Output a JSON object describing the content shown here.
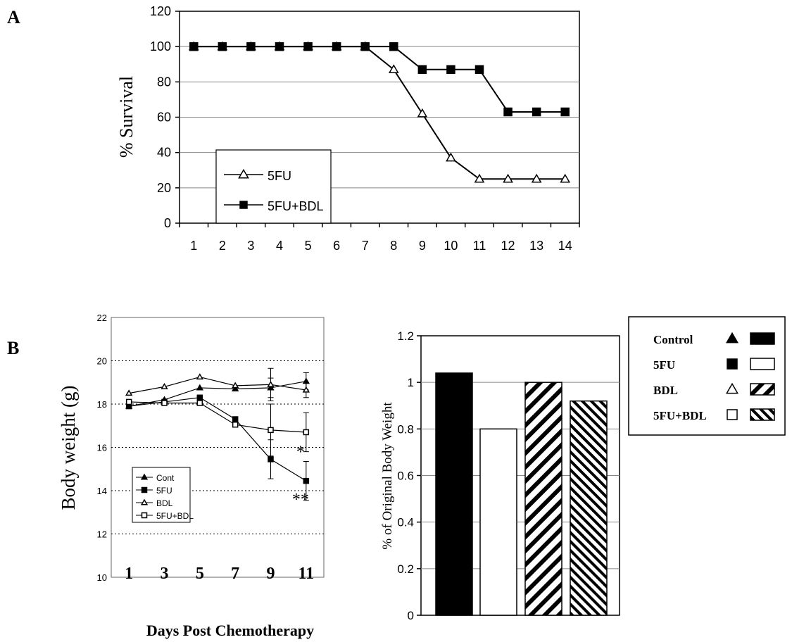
{
  "panel_labels": {
    "a": "A",
    "b": "B"
  },
  "shared_xlabel": "Days Post Chemotherapy",
  "chart_data": [
    {
      "type": "line",
      "panel": "A",
      "ylabel": "% Survival",
      "ylim": [
        0,
        120
      ],
      "yticks": [
        0,
        20,
        40,
        60,
        80,
        100,
        120
      ],
      "x": [
        1,
        2,
        3,
        4,
        5,
        6,
        7,
        8,
        9,
        10,
        11,
        12,
        13,
        14
      ],
      "grid": "horizontal",
      "legend_placement": "lower-left",
      "series": [
        {
          "name": "5FU",
          "marker": "open-triangle",
          "values": [
            100,
            100,
            100,
            100,
            100,
            100,
            100,
            87,
            62,
            37,
            25,
            25,
            25,
            25
          ]
        },
        {
          "name": "5FU+BDL",
          "marker": "filled-square",
          "values": [
            100,
            100,
            100,
            100,
            100,
            100,
            100,
            100,
            87,
            87,
            87,
            63,
            63,
            63
          ]
        }
      ]
    },
    {
      "type": "line",
      "panel": "B-left",
      "ylabel": "Body weight (g)",
      "ylim": [
        10,
        22
      ],
      "yticks": [
        10,
        12,
        14,
        16,
        18,
        20,
        22
      ],
      "xlim": [
        0,
        12
      ],
      "xticks": [
        1,
        3,
        5,
        7,
        9,
        11
      ],
      "grid": "horizontal-dotted",
      "legend_placement": "lower-left",
      "x": [
        1,
        3,
        5,
        7,
        9,
        11
      ],
      "series": [
        {
          "name": "Cont",
          "marker": "filled-triangle",
          "values": [
            17.9,
            18.2,
            18.75,
            18.7,
            18.75,
            19.05
          ],
          "errors": [
            0,
            0,
            0,
            0,
            0.45,
            0.4
          ]
        },
        {
          "name": "5FU",
          "marker": "filled-square",
          "values": [
            17.9,
            18.1,
            18.3,
            17.3,
            15.45,
            14.45
          ],
          "errors": [
            0,
            0,
            0,
            0,
            0.9,
            0.9
          ]
        },
        {
          "name": "BDL",
          "marker": "open-triangle",
          "values": [
            18.5,
            18.8,
            19.25,
            18.85,
            18.9,
            18.65
          ],
          "errors": [
            0,
            0,
            0,
            0,
            0.75,
            0.35
          ]
        },
        {
          "name": "5FU+BDL",
          "marker": "open-square",
          "values": [
            18.1,
            18.05,
            18.05,
            17.05,
            16.8,
            16.7
          ],
          "errors": [
            0,
            0,
            0,
            0,
            1.2,
            0.9
          ]
        }
      ],
      "annotations": [
        {
          "text": "*",
          "x": 11,
          "y": 16.0
        },
        {
          "text": "**",
          "x": 11,
          "y": 13.8
        }
      ]
    },
    {
      "type": "bar",
      "panel": "B-right",
      "ylabel": "% of Original Body Weight",
      "ylim": [
        0,
        1.2
      ],
      "yticks": [
        "0",
        "0.2",
        "0.4",
        "0.6",
        "0.8",
        "1",
        "1.2"
      ],
      "grid": "horizontal",
      "categories": [
        "Control",
        "5FU",
        "BDL",
        "5FU+BDL"
      ],
      "values": [
        1.04,
        0.8,
        1.0,
        0.92
      ],
      "fills": [
        "solid-black",
        "white",
        "hatch-forward",
        "hatch-back"
      ],
      "legend_placement": "right",
      "legend": [
        {
          "label": "Control",
          "marker": "filled-triangle",
          "swatch": "solid-black"
        },
        {
          "label": "5FU",
          "marker": "filled-square",
          "swatch": "white"
        },
        {
          "label": "BDL",
          "marker": "open-triangle",
          "swatch": "hatch-forward"
        },
        {
          "label": "5FU+BDL",
          "marker": "open-square",
          "swatch": "hatch-back"
        }
      ]
    }
  ]
}
